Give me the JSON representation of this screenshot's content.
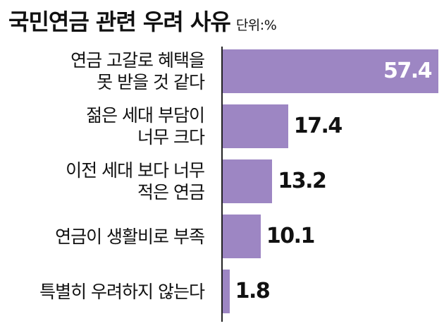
{
  "chart_data": {
    "type": "bar",
    "orientation": "horizontal",
    "title": "국민연금 관련 우려 사유",
    "unit": "단위:%",
    "categories": [
      [
        "연금 고갈로 혜택을",
        "못 받을 것 같다"
      ],
      [
        "젊은 세대 부담이",
        "너무 크다"
      ],
      [
        "이전 세대 보다 너무",
        "적은 연금"
      ],
      [
        "연금이 생활비로 부족"
      ],
      [
        "특별히 우려하지 않는다"
      ]
    ],
    "values": [
      57.4,
      17.4,
      13.2,
      10.1,
      1.8
    ],
    "value_labels": [
      "57.4",
      "17.4",
      "13.2",
      "10.1",
      "1.8"
    ],
    "xlim": [
      0,
      57.4
    ],
    "bar_color": "#9d86c3",
    "grid": false,
    "legend": "none"
  }
}
